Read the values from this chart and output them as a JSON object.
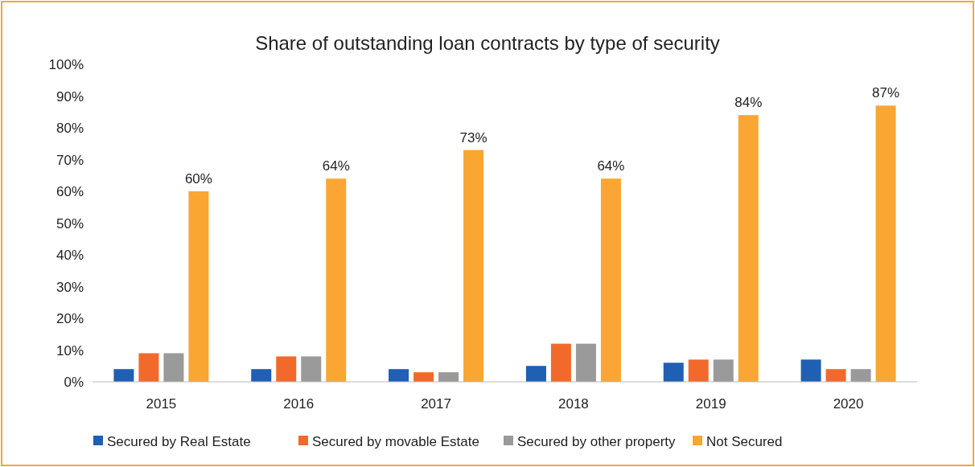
{
  "chart_data": {
    "type": "bar",
    "title": "Share of outstanding loan contracts by type of security",
    "categories": [
      "2015",
      "2016",
      "2017",
      "2018",
      "2019",
      "2020"
    ],
    "series": [
      {
        "name": "Secured by Real Estate",
        "color": "#1f5fb4",
        "values": [
          4,
          4,
          4,
          5,
          6,
          7
        ]
      },
      {
        "name": "Secured by movable Estate",
        "color": "#f26a2b",
        "values": [
          9,
          8,
          3,
          12,
          7,
          4
        ]
      },
      {
        "name": "Secured by other property",
        "color": "#9a9a9a",
        "values": [
          9,
          8,
          3,
          12,
          7,
          4
        ]
      },
      {
        "name": "Not Secured",
        "color": "#f9a633",
        "values": [
          60,
          64,
          73,
          64,
          84,
          87
        ],
        "value_labels": [
          "60%",
          "64%",
          "73%",
          "64%",
          "84%",
          "87%"
        ]
      }
    ],
    "ylim": [
      0,
      100
    ],
    "yticks": [
      {
        "value": 0,
        "label": "0%"
      },
      {
        "value": 10,
        "label": "10%"
      },
      {
        "value": 20,
        "label": "20%"
      },
      {
        "value": 30,
        "label": "30%"
      },
      {
        "value": 40,
        "label": "40%"
      },
      {
        "value": 50,
        "label": "50%"
      },
      {
        "value": 60,
        "label": "60%"
      },
      {
        "value": 70,
        "label": "70%"
      },
      {
        "value": 80,
        "label": "80%"
      },
      {
        "value": 90,
        "label": "90%"
      },
      {
        "value": 100,
        "label": "100%"
      }
    ],
    "grid": false,
    "legend": "bottom"
  }
}
